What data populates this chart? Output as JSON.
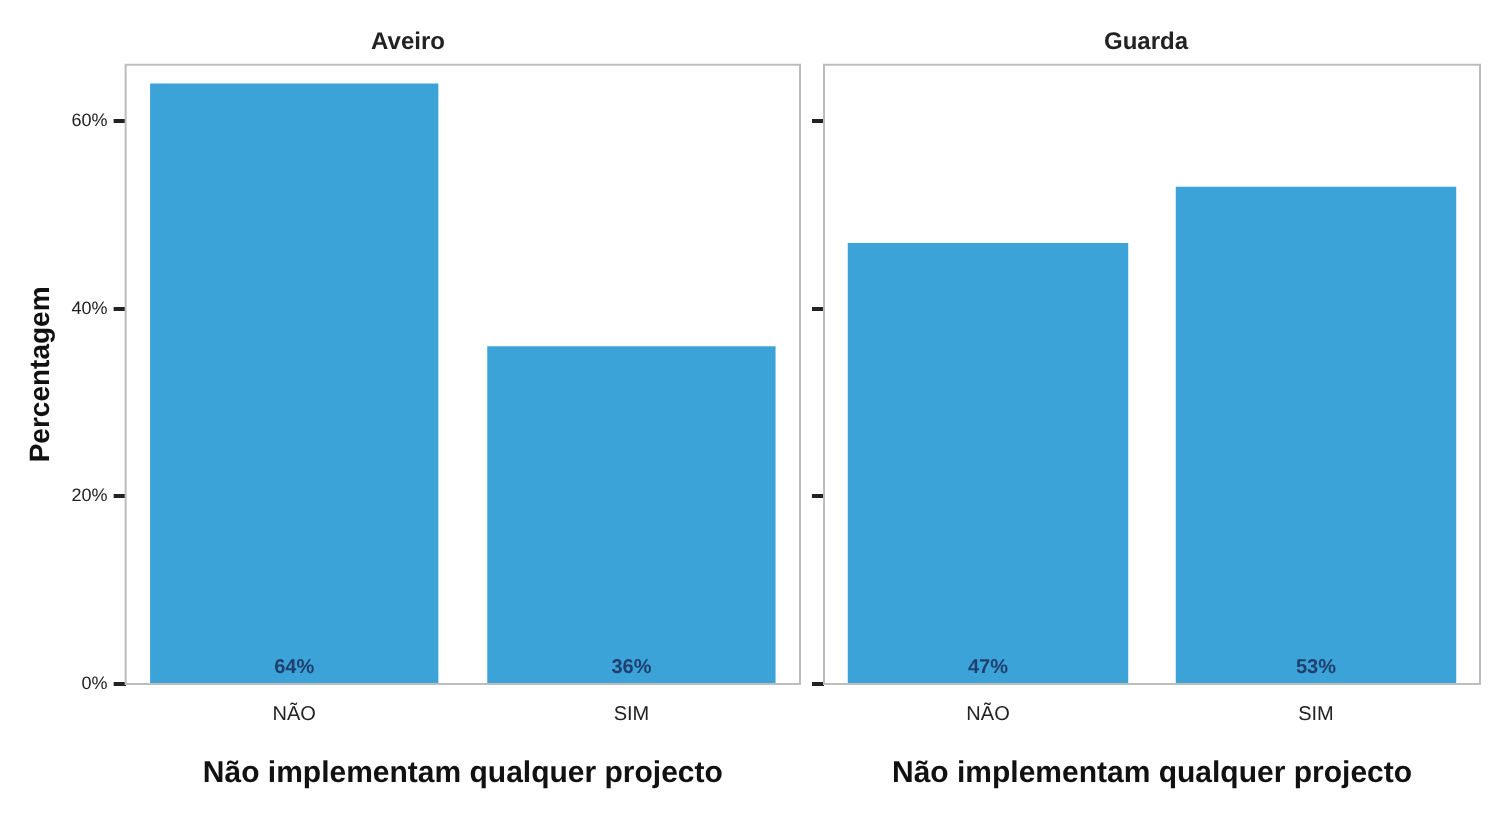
{
  "chart_data": [
    {
      "type": "bar",
      "title": "Aveiro",
      "categories": [
        "NÃO",
        "SIM"
      ],
      "values": [
        64,
        36
      ],
      "value_labels": [
        "64%",
        "36%"
      ],
      "color": "#3ba3d8",
      "ylim": [
        0,
        66
      ],
      "yticks": [
        {
          "value": 0,
          "label": "0%"
        },
        {
          "value": 20,
          "label": "20%"
        },
        {
          "value": 40,
          "label": "40%"
        },
        {
          "value": 60,
          "label": "60%"
        }
      ],
      "xlabel": "Não implementam qualquer projecto",
      "ylabel": "Percentagem",
      "grid": false,
      "legend": false
    },
    {
      "type": "bar",
      "title": "Guarda",
      "categories": [
        "NÃO",
        "SIM"
      ],
      "values": [
        47,
        53
      ],
      "value_labels": [
        "47%",
        "53%"
      ],
      "color": "#3ba3d8",
      "ylim": [
        0,
        66
      ],
      "yticks": [
        {
          "value": 0,
          "label": null
        },
        {
          "value": 20,
          "label": null
        },
        {
          "value": 40,
          "label": null
        },
        {
          "value": 60,
          "label": null
        }
      ],
      "xlabel": "Não implementam qualquer projecto",
      "tick_labels": "x",
      "grid": false,
      "legend": false
    }
  ]
}
